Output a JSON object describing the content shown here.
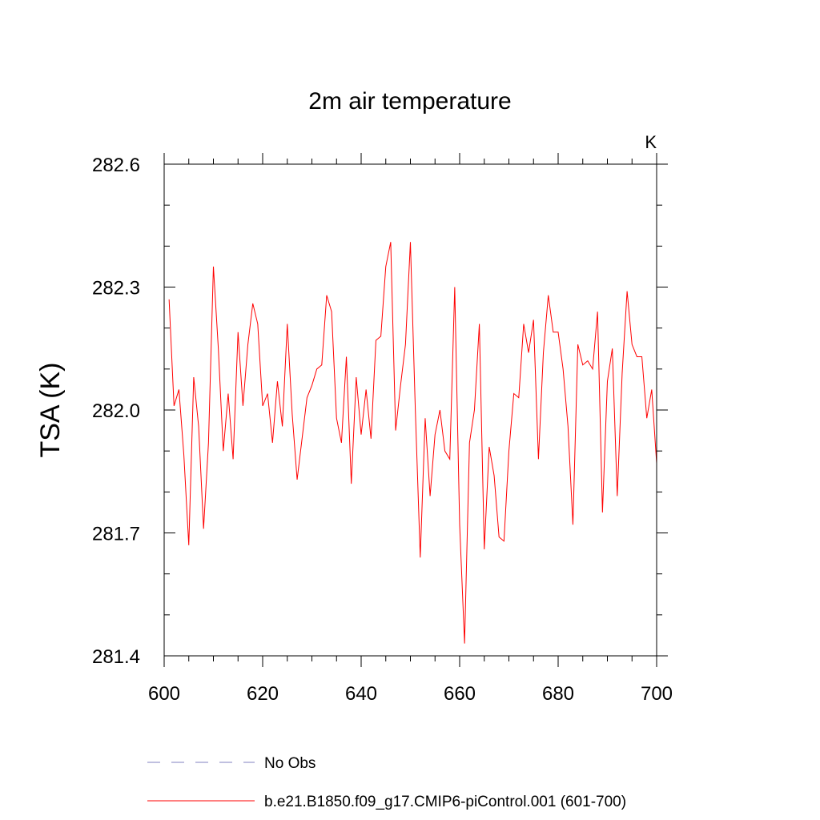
{
  "chart_data": {
    "type": "line",
    "title": "2m air temperature",
    "units_label": "K",
    "xlabel": "",
    "ylabel": "TSA  (K)",
    "xlim": [
      600,
      700
    ],
    "ylim": [
      281.4,
      282.6
    ],
    "x_ticks": [
      600,
      620,
      640,
      660,
      680,
      700
    ],
    "x_tick_labels": [
      "600",
      "620",
      "640",
      "660",
      "680",
      "700"
    ],
    "x_minor_step": 5,
    "y_ticks": [
      281.4,
      281.7,
      282.0,
      282.3,
      282.6
    ],
    "y_tick_labels": [
      "281.4",
      "281.7",
      "282.0",
      "282.3",
      "282.6"
    ],
    "y_minor_step": 0.1,
    "series": [
      {
        "name": "b.e21.B1850.f09_g17.CMIP6-piControl.001 (601-700)",
        "color": "#ff0000",
        "x_start": 601,
        "x_step": 1,
        "values": [
          282.27,
          282.01,
          282.05,
          281.89,
          281.67,
          282.08,
          281.96,
          281.71,
          281.92,
          282.35,
          282.15,
          281.9,
          282.04,
          281.88,
          282.19,
          282.01,
          282.16,
          282.26,
          282.21,
          282.01,
          282.04,
          281.92,
          282.07,
          281.96,
          282.21,
          281.99,
          281.83,
          281.93,
          282.03,
          282.06,
          282.1,
          282.11,
          282.28,
          282.24,
          281.98,
          281.92,
          282.13,
          281.82,
          282.08,
          281.94,
          282.05,
          281.93,
          282.17,
          282.18,
          282.35,
          282.41,
          281.95,
          282.06,
          282.16,
          282.41,
          282.0,
          281.64,
          281.98,
          281.79,
          281.94,
          282.0,
          281.9,
          281.88,
          282.3,
          281.72,
          281.43,
          281.92,
          282.0,
          282.21,
          281.66,
          281.91,
          281.84,
          281.69,
          281.68,
          281.9,
          282.04,
          282.03,
          282.21,
          282.14,
          282.22,
          281.88,
          282.14,
          282.28,
          282.19,
          282.19,
          282.1,
          281.96,
          281.72,
          282.16,
          282.11,
          282.12,
          282.1,
          282.24,
          281.75,
          282.07,
          282.15,
          281.79,
          282.09,
          282.29,
          282.16,
          282.13,
          282.13,
          281.98,
          282.05,
          281.87
        ]
      }
    ],
    "legend": [
      {
        "label": "No Obs",
        "color": "#8080c0",
        "style": "dashed"
      },
      {
        "label": "b.e21.B1850.f09_g17.CMIP6-piControl.001 (601-700)",
        "color": "#ff0000",
        "style": "solid"
      }
    ]
  }
}
